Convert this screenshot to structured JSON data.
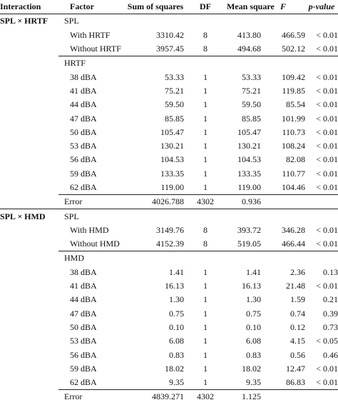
{
  "header": [
    "Interaction",
    "Factor",
    "Sum of squares",
    "DF",
    "Mean square",
    "F",
    "p-value"
  ],
  "sections": [
    {
      "interaction": "SPL × HRTF",
      "groups": [
        {
          "label": "SPL",
          "rows": [
            [
              "With HRTF",
              "3310.42",
              "8",
              "413.80",
              "466.59",
              "< 0.01"
            ],
            [
              "Without HRTF",
              "3957.45",
              "8",
              "494.68",
              "502.12",
              "< 0.01"
            ]
          ]
        },
        {
          "label": "HRTF",
          "rows": [
            [
              "38 dBA",
              "53.33",
              "1",
              "53.33",
              "109.42",
              "< 0.01"
            ],
            [
              "41 dBA",
              "75.21",
              "1",
              "75.21",
              "119.85",
              "< 0.01"
            ],
            [
              "44 dBA",
              "59.50",
              "1",
              "59.50",
              "85.54",
              "< 0.01"
            ],
            [
              "47 dBA",
              "85.85",
              "1",
              "85.85",
              "101.99",
              "< 0.01"
            ],
            [
              "50 dBA",
              "105.47",
              "1",
              "105.47",
              "110.73",
              "< 0.01"
            ],
            [
              "53 dBA",
              "130.21",
              "1",
              "130.21",
              "108.24",
              "< 0.01"
            ],
            [
              "56 dBA",
              "104.53",
              "1",
              "104.53",
              "82.08",
              "< 0.01"
            ],
            [
              "59 dBA",
              "133.35",
              "1",
              "133.35",
              "110.77",
              "< 0.01"
            ],
            [
              "62 dBA",
              "119.00",
              "1",
              "119.00",
              "104.46",
              "< 0.01"
            ]
          ]
        }
      ],
      "error": [
        "Error",
        "4026.788",
        "4302",
        "0.936"
      ]
    },
    {
      "interaction": "SPL × HMD",
      "groups": [
        {
          "label": "SPL",
          "rows": [
            [
              "With HMD",
              "3149.76",
              "8",
              "393.72",
              "346.28",
              "< 0.01"
            ],
            [
              "Without HMD",
              "4152.39",
              "8",
              "519.05",
              "466.44",
              "< 0.01"
            ]
          ]
        },
        {
          "label": "HMD",
          "rows": [
            [
              "38 dBA",
              "1.41",
              "1",
              "1.41",
              "2.36",
              "0.13"
            ],
            [
              "41 dBA",
              "16.13",
              "1",
              "16.13",
              "21.48",
              "< 0.01"
            ],
            [
              "44 dBA",
              "1.30",
              "1",
              "1.30",
              "1.59",
              "0.21"
            ],
            [
              "47 dBA",
              "0.75",
              "1",
              "0.75",
              "0.74",
              "0.39"
            ],
            [
              "50 dBA",
              "0.10",
              "1",
              "0.10",
              "0.12",
              "0.73"
            ],
            [
              "53 dBA",
              "6.08",
              "1",
              "6.08",
              "4.15",
              "< 0.05"
            ],
            [
              "56 dBA",
              "0.83",
              "1",
              "0.83",
              "0.56",
              "0.46"
            ],
            [
              "59 dBA",
              "18.02",
              "1",
              "18.02",
              "12.47",
              "< 0.01"
            ],
            [
              "62 dBA",
              "9.35",
              "1",
              "9.35",
              "86.83",
              "< 0.01"
            ]
          ]
        }
      ],
      "error": [
        "Error",
        "4839.271",
        "4302",
        "1.125"
      ]
    }
  ]
}
